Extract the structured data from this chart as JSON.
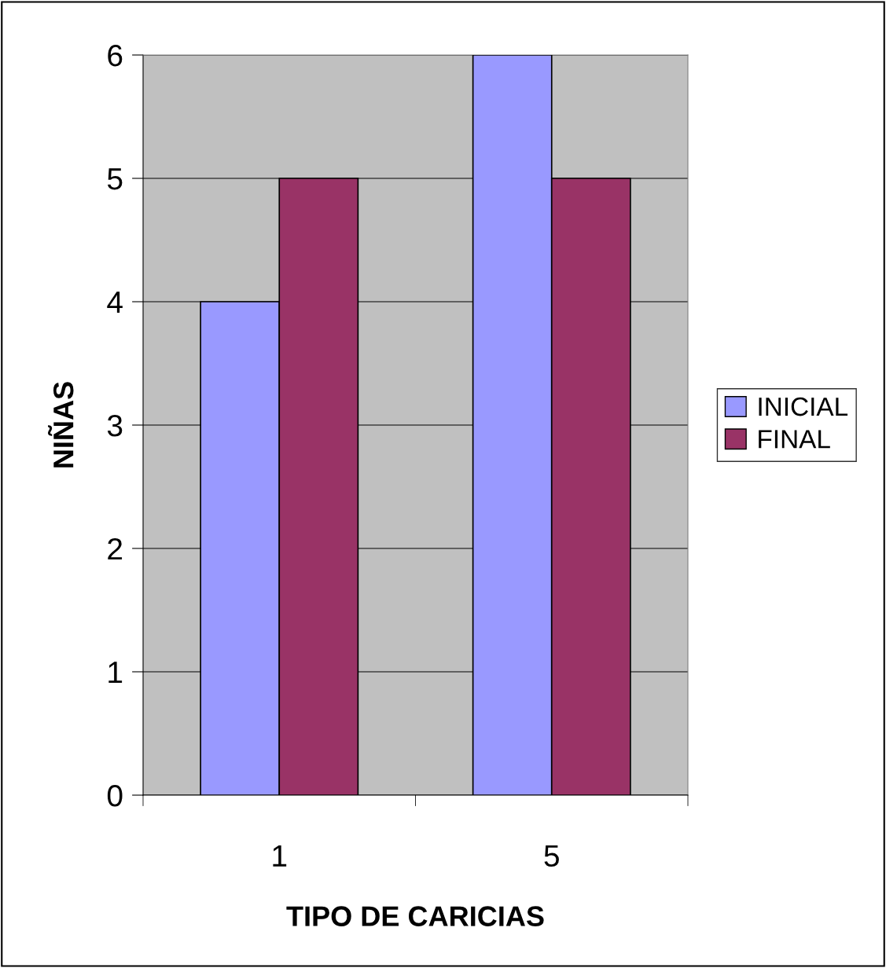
{
  "chart_data": {
    "type": "bar",
    "xlabel": "TIPO DE CARICIAS",
    "ylabel": "NIÑAS",
    "categories": [
      "1",
      "5"
    ],
    "series": [
      {
        "name": "INICIAL",
        "color": "#9999ff",
        "values": [
          4,
          6
        ]
      },
      {
        "name": "FINAL",
        "color": "#993366",
        "values": [
          5,
          5
        ]
      }
    ],
    "ylim": [
      0,
      6
    ],
    "yticks": [
      0,
      1,
      2,
      3,
      4,
      5,
      6
    ],
    "grid": "y",
    "legend": "right"
  }
}
